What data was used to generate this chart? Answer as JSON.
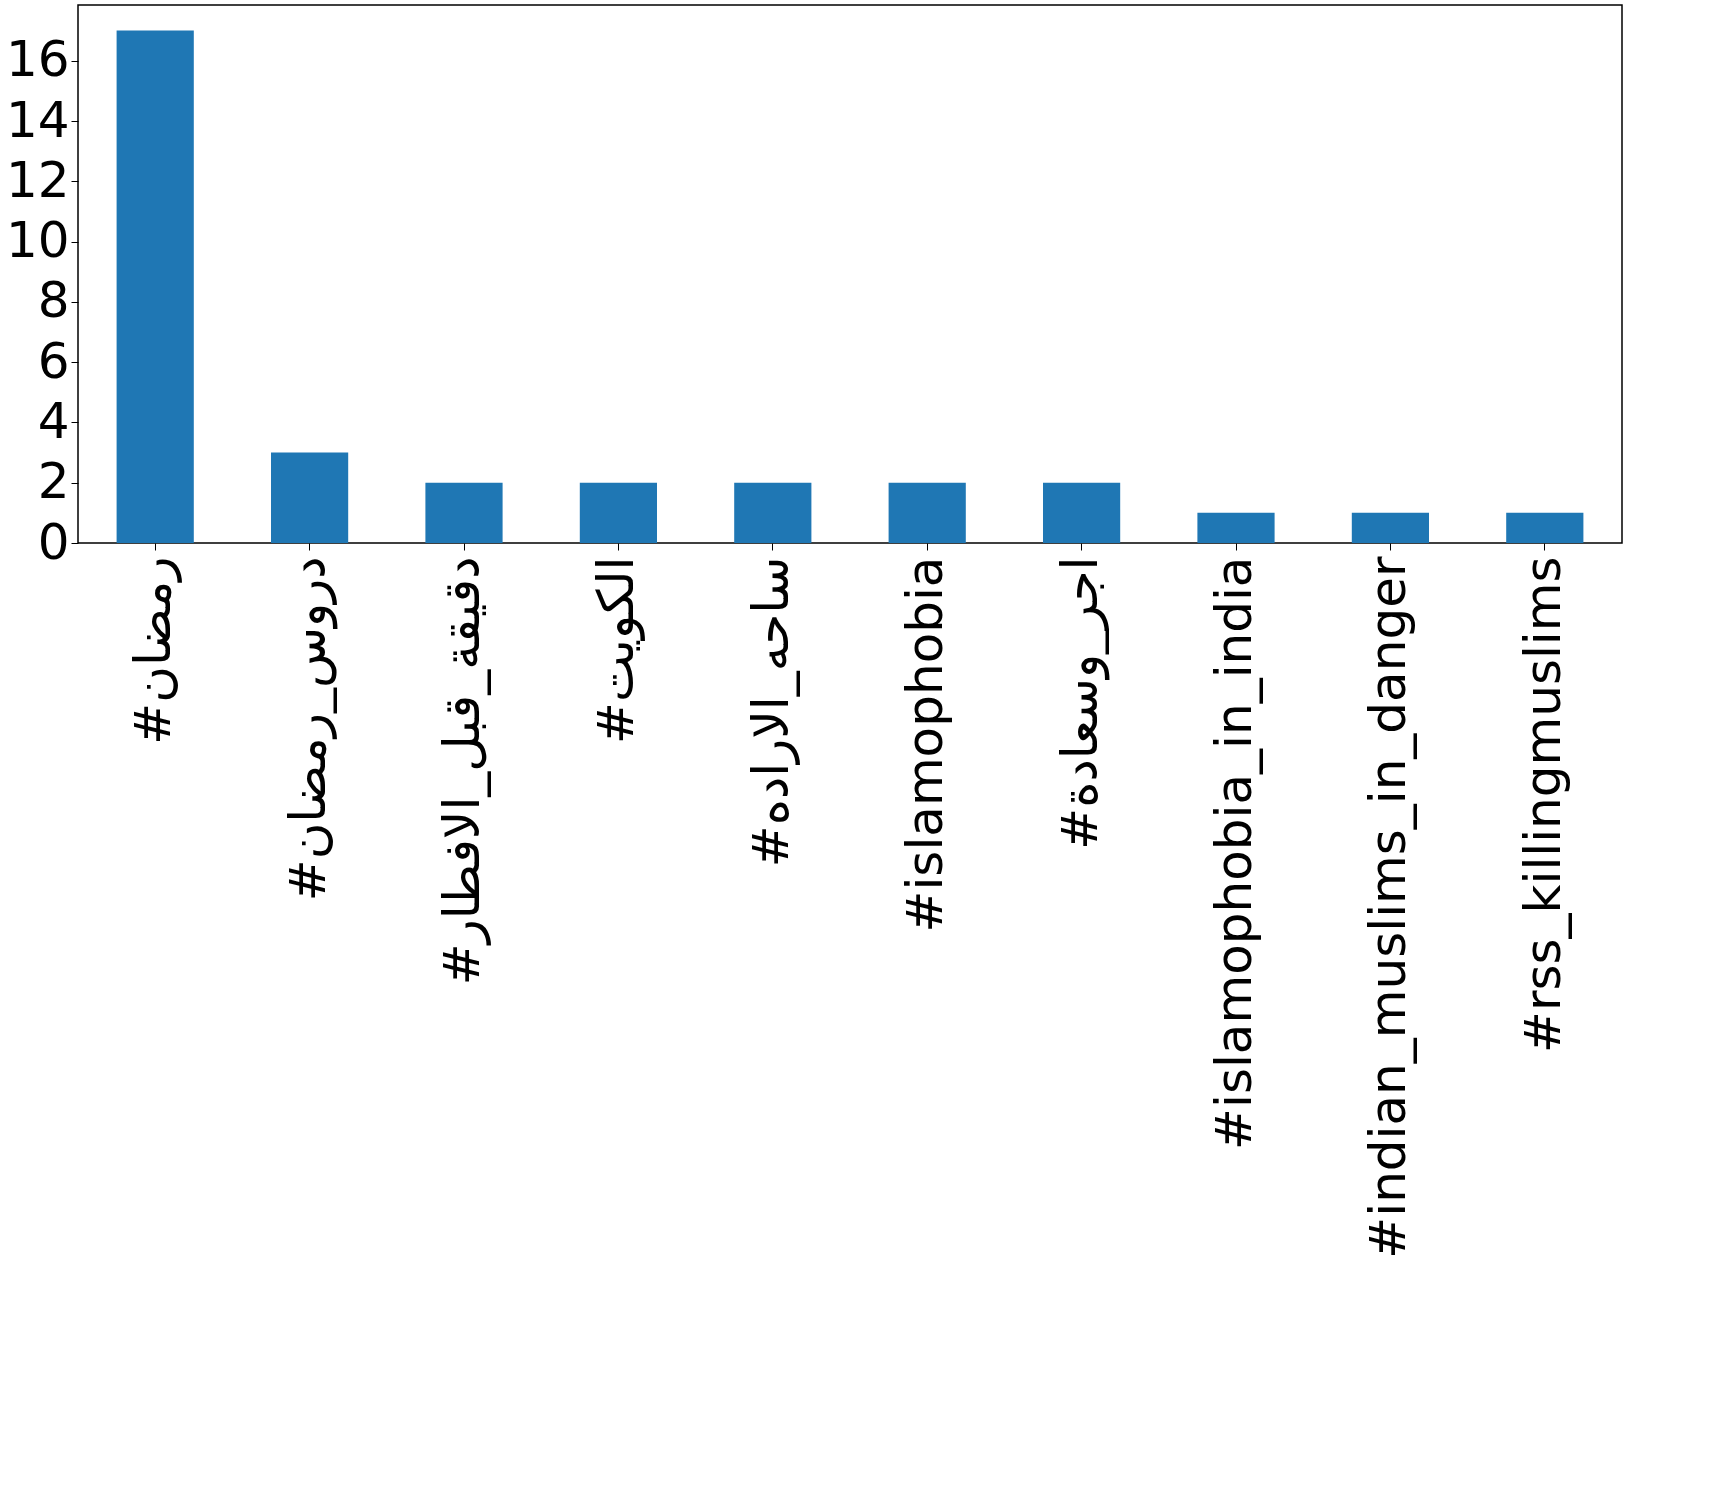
{
  "chart_data": {
    "type": "bar",
    "categories": [
      "#رمضان",
      "#دروس_رمضان",
      "#دقيقة_قبل_الافطار",
      "#الكويت",
      "#ساحه_الاراده",
      "#islamophobia",
      "#اجر_وسعادة",
      "#islamophobia_in_india",
      "#indian_muslims_in_danger",
      "#rss_killingmuslims"
    ],
    "values": [
      17,
      3,
      2,
      2,
      2,
      2,
      2,
      1,
      1,
      1
    ],
    "color": "#1f77b4",
    "ylim": [
      0,
      17.85
    ],
    "yticks": [
      0,
      2,
      4,
      6,
      8,
      10,
      12,
      14,
      16
    ],
    "grid": false
  }
}
